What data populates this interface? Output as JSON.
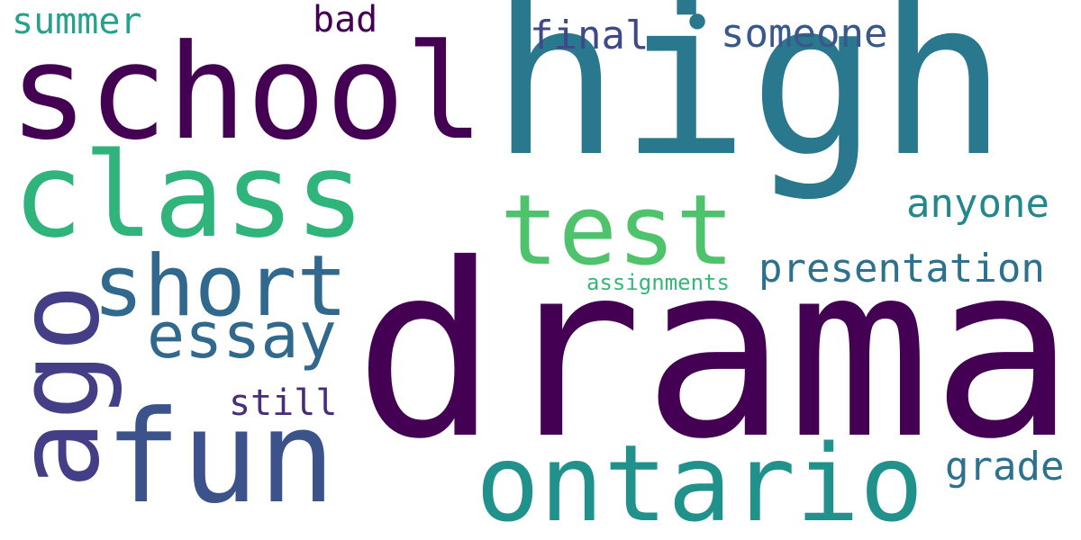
{
  "words": {
    "drama": {
      "text": "drama",
      "color": "#440154"
    },
    "high": {
      "text": "high",
      "color": "#2a788e"
    },
    "school": {
      "text": "school",
      "color": "#440154"
    },
    "class": {
      "text": "class",
      "color": "#2fb47c"
    },
    "ontario": {
      "text": "ontario",
      "color": "#21918c"
    },
    "fun": {
      "text": "fun",
      "color": "#3b528b"
    },
    "test": {
      "text": "test",
      "color": "#4ec36b"
    },
    "short": {
      "text": "short",
      "color": "#31688e"
    },
    "essay": {
      "text": "essay",
      "color": "#31688e"
    },
    "ago": {
      "text": "ago",
      "color": "#433e85"
    },
    "presentation": {
      "text": "presentation",
      "color": "#2c728e"
    },
    "anyone": {
      "text": "anyone",
      "color": "#23888e"
    },
    "grade": {
      "text": "grade",
      "color": "#2c728e"
    },
    "someone": {
      "text": "someone",
      "color": "#38588c"
    },
    "final": {
      "text": "final",
      "color": "#3e4989"
    },
    "summer": {
      "text": "summer",
      "color": "#25a18e"
    },
    "bad": {
      "text": "bad",
      "color": "#440154"
    },
    "still": {
      "text": "still",
      "color": "#472d7b"
    },
    "assignments": {
      "text": "assignments",
      "color": "#35b779"
    },
    "dot": {
      "text": "•",
      "color": "#2a788e"
    }
  }
}
